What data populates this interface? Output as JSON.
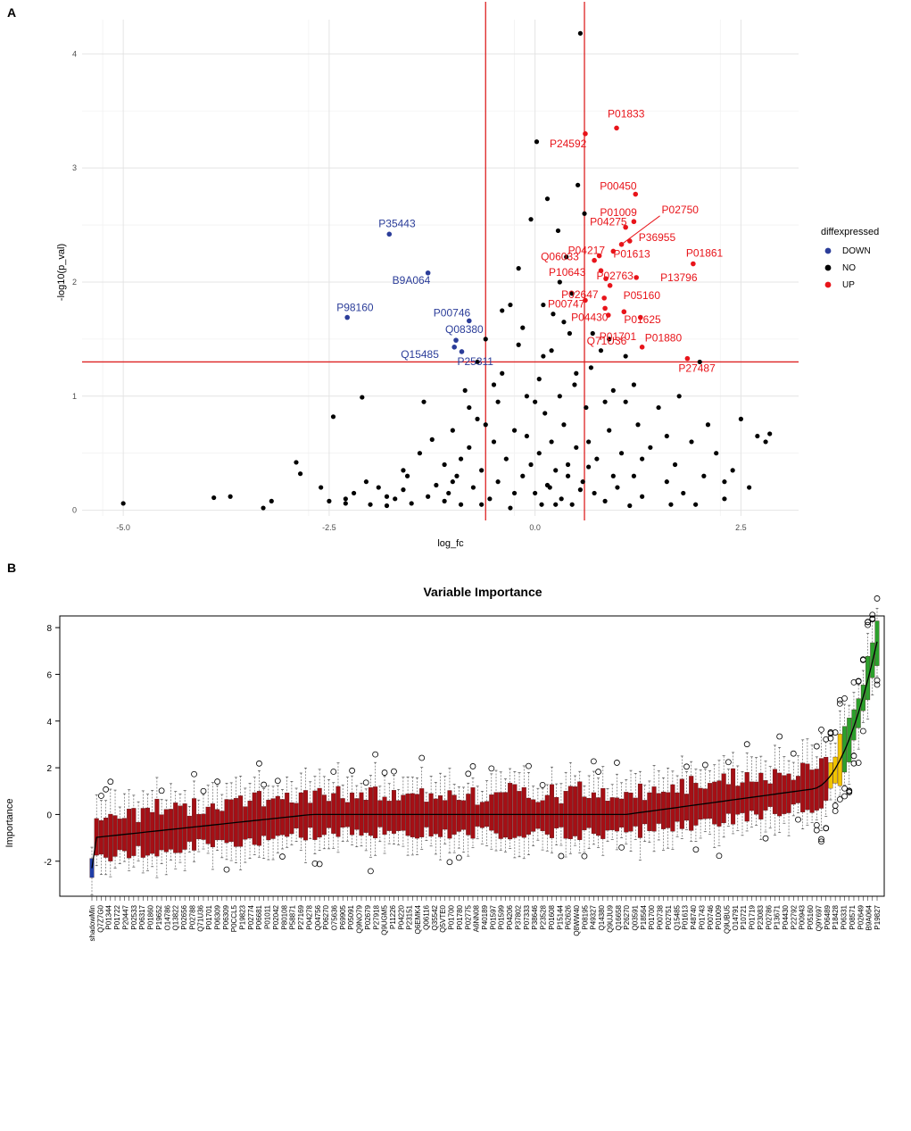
{
  "panels": {
    "a": "A",
    "b": "B"
  },
  "chart_data": [
    {
      "type": "scatter",
      "panel": "A",
      "title": "",
      "xlabel": "log_fc",
      "ylabel": "-log10(p_val)",
      "xlim": [
        -5.5,
        3.2
      ],
      "ylim": [
        -0.05,
        4.3
      ],
      "xticks": [
        -5.0,
        -2.5,
        0.0,
        2.5
      ],
      "xtick_labels": [
        "-5.0",
        "-2.5",
        "0.0",
        "2.5"
      ],
      "yticks": [
        0,
        1,
        2,
        3,
        4
      ],
      "ytick_labels": [
        "0",
        "1",
        "2",
        "3",
        "4"
      ],
      "thresholds": {
        "log_fc": [
          -0.6,
          0.6
        ],
        "neg_log10_p": 1.3
      },
      "legend": {
        "title": "diffexpressed",
        "position": "right",
        "entries": [
          "DOWN",
          "NO",
          "UP"
        ]
      },
      "colors": {
        "DOWN": "#2b3d99",
        "NO": "#000000",
        "UP": "#e8141a",
        "threshold": "#dd2222"
      },
      "labeled_points": [
        {
          "label": "P35443",
          "x": -1.77,
          "y": 2.42,
          "group": "DOWN"
        },
        {
          "label": "B9A064",
          "x": -1.3,
          "y": 2.08,
          "group": "DOWN"
        },
        {
          "label": "P98160",
          "x": -2.28,
          "y": 1.69,
          "group": "DOWN"
        },
        {
          "label": "P00746",
          "x": -0.8,
          "y": 1.66,
          "group": "DOWN"
        },
        {
          "label": "Q08380",
          "x": -0.96,
          "y": 1.49,
          "group": "DOWN"
        },
        {
          "label": "Q15485",
          "x": -0.98,
          "y": 1.43,
          "group": "DOWN"
        },
        {
          "label": "P25311",
          "x": -0.89,
          "y": 1.39,
          "group": "DOWN"
        },
        {
          "label": "P01833",
          "x": 0.99,
          "y": 3.35,
          "group": "UP"
        },
        {
          "label": "P24592",
          "x": 0.61,
          "y": 3.3,
          "group": "UP"
        },
        {
          "label": "P00450",
          "x": 1.22,
          "y": 2.77,
          "group": "UP"
        },
        {
          "label": "P01009",
          "x": 1.2,
          "y": 2.53,
          "group": "UP"
        },
        {
          "label": "P04275",
          "x": 1.1,
          "y": 2.48,
          "group": "UP"
        },
        {
          "label": "P02750",
          "x": 1.05,
          "y": 2.33,
          "group": "UP"
        },
        {
          "label": "P36955",
          "x": 1.15,
          "y": 2.36,
          "group": "UP"
        },
        {
          "label": "P04217",
          "x": 0.78,
          "y": 2.23,
          "group": "UP"
        },
        {
          "label": "P01613",
          "x": 0.95,
          "y": 2.27,
          "group": "UP"
        },
        {
          "label": "P01861",
          "x": 1.92,
          "y": 2.16,
          "group": "UP"
        },
        {
          "label": "Q06033",
          "x": 0.72,
          "y": 2.19,
          "group": "UP"
        },
        {
          "label": "P02763",
          "x": 0.8,
          "y": 2.1,
          "group": "UP"
        },
        {
          "label": "P10643",
          "x": 0.86,
          "y": 2.03,
          "group": "UP"
        },
        {
          "label": "P13796",
          "x": 1.23,
          "y": 2.04,
          "group": "UP"
        },
        {
          "label": "P05160",
          "x": 0.91,
          "y": 1.97,
          "group": "UP"
        },
        {
          "label": "P02647",
          "x": 0.84,
          "y": 1.86,
          "group": "UP"
        },
        {
          "label": "P00747",
          "x": 0.61,
          "y": 1.84,
          "group": "UP"
        },
        {
          "label": "P04430",
          "x": 0.85,
          "y": 1.77,
          "group": "UP"
        },
        {
          "label": "P01625",
          "x": 1.08,
          "y": 1.74,
          "group": "UP"
        },
        {
          "label": "P01701",
          "x": 0.89,
          "y": 1.71,
          "group": "UP"
        },
        {
          "label": "P01880",
          "x": 1.28,
          "y": 1.69,
          "group": "UP"
        },
        {
          "label": "Q71U36",
          "x": 1.3,
          "y": 1.43,
          "group": "UP"
        },
        {
          "label": "P27487",
          "x": 1.85,
          "y": 1.33,
          "group": "UP"
        }
      ],
      "unlabeled_points": [
        [
          -5.0,
          0.06
        ],
        [
          -3.9,
          0.11
        ],
        [
          -3.7,
          0.12
        ],
        [
          -3.3,
          0.02
        ],
        [
          -3.2,
          0.08
        ],
        [
          -2.9,
          0.42
        ],
        [
          -2.85,
          0.32
        ],
        [
          -2.5,
          0.08
        ],
        [
          -2.45,
          0.82
        ],
        [
          -2.3,
          0.1
        ],
        [
          -2.2,
          0.15
        ],
        [
          -2.1,
          0.99
        ],
        [
          -2.05,
          0.25
        ],
        [
          -2.0,
          0.05
        ],
        [
          -1.9,
          0.2
        ],
        [
          -1.8,
          0.04
        ],
        [
          -1.7,
          0.1
        ],
        [
          -1.6,
          0.18
        ],
        [
          -1.55,
          0.3
        ],
        [
          -1.5,
          0.06
        ],
        [
          -1.4,
          0.5
        ],
        [
          -1.35,
          0.95
        ],
        [
          -1.3,
          0.12
        ],
        [
          -1.25,
          0.62
        ],
        [
          -1.2,
          0.22
        ],
        [
          -1.1,
          0.4
        ],
        [
          -1.05,
          0.15
        ],
        [
          -1.0,
          0.7
        ],
        [
          -0.95,
          0.3
        ],
        [
          -0.9,
          0.05
        ],
        [
          -0.85,
          1.05
        ],
        [
          -0.8,
          0.55
        ],
        [
          -0.75,
          0.2
        ],
        [
          -0.7,
          0.8
        ],
        [
          -0.65,
          0.35
        ],
        [
          -0.6,
          1.5
        ],
        [
          -0.55,
          0.1
        ],
        [
          -0.5,
          0.6
        ],
        [
          -0.45,
          0.25
        ],
        [
          -0.4,
          1.2
        ],
        [
          -0.35,
          0.45
        ],
        [
          -0.3,
          0.02
        ],
        [
          -0.25,
          0.7
        ],
        [
          -0.2,
          2.12
        ],
        [
          -0.15,
          0.3
        ],
        [
          -0.1,
          1.0
        ],
        [
          -0.05,
          2.55
        ],
        [
          0.0,
          0.15
        ],
        [
          0.02,
          3.23
        ],
        [
          0.05,
          0.5
        ],
        [
          0.08,
          0.05
        ],
        [
          0.1,
          1.35
        ],
        [
          0.12,
          0.85
        ],
        [
          0.15,
          2.73
        ],
        [
          0.18,
          0.2
        ],
        [
          0.2,
          0.6
        ],
        [
          0.22,
          1.72
        ],
        [
          0.25,
          0.35
        ],
        [
          0.28,
          2.45
        ],
        [
          0.3,
          1.0
        ],
        [
          0.32,
          0.1
        ],
        [
          0.35,
          0.75
        ],
        [
          0.38,
          2.22
        ],
        [
          0.4,
          0.4
        ],
        [
          0.42,
          1.55
        ],
        [
          0.45,
          0.05
        ],
        [
          0.48,
          1.1
        ],
        [
          0.5,
          0.55
        ],
        [
          0.52,
          2.85
        ],
        [
          0.55,
          4.18
        ],
        [
          0.58,
          0.25
        ],
        [
          0.62,
          0.9
        ],
        [
          0.65,
          0.6
        ],
        [
          0.68,
          1.25
        ],
        [
          0.72,
          0.15
        ],
        [
          0.75,
          0.45
        ],
        [
          0.8,
          1.4
        ],
        [
          0.85,
          0.08
        ],
        [
          0.9,
          0.7
        ],
        [
          0.95,
          1.05
        ],
        [
          1.0,
          0.2
        ],
        [
          1.05,
          0.5
        ],
        [
          1.1,
          0.95
        ],
        [
          1.15,
          0.04
        ],
        [
          1.2,
          0.3
        ],
        [
          1.25,
          0.75
        ],
        [
          1.3,
          0.12
        ],
        [
          1.4,
          0.55
        ],
        [
          1.5,
          0.9
        ],
        [
          1.6,
          0.25
        ],
        [
          1.65,
          0.05
        ],
        [
          1.7,
          0.4
        ],
        [
          1.75,
          1.0
        ],
        [
          1.8,
          0.15
        ],
        [
          1.9,
          0.6
        ],
        [
          1.95,
          0.05
        ],
        [
          2.0,
          1.3
        ],
        [
          2.05,
          0.3
        ],
        [
          2.1,
          0.75
        ],
        [
          2.2,
          0.5
        ],
        [
          2.3,
          0.1
        ],
        [
          2.4,
          0.35
        ],
        [
          2.5,
          0.8
        ],
        [
          2.6,
          0.2
        ],
        [
          2.7,
          0.65
        ],
        [
          2.8,
          0.6
        ],
        [
          2.85,
          0.67
        ],
        [
          -0.3,
          1.8
        ],
        [
          0.3,
          2.0
        ],
        [
          -0.5,
          1.1
        ],
        [
          0.1,
          1.8
        ],
        [
          0.6,
          2.6
        ],
        [
          -0.7,
          1.3
        ],
        [
          0.45,
          1.9
        ],
        [
          -0.15,
          1.6
        ],
        [
          0.7,
          1.55
        ],
        [
          0.2,
          1.4
        ],
        [
          -0.4,
          1.75
        ],
        [
          0.35,
          1.65
        ],
        [
          -0.2,
          1.45
        ],
        [
          0.9,
          1.5
        ],
        [
          1.1,
          1.35
        ],
        [
          -1.6,
          0.35
        ],
        [
          -2.6,
          0.2
        ],
        [
          1.3,
          0.45
        ],
        [
          2.3,
          0.25
        ],
        [
          -0.9,
          0.45
        ],
        [
          -0.6,
          0.75
        ],
        [
          0.0,
          0.95
        ],
        [
          0.4,
          0.3
        ],
        [
          -1.1,
          0.08
        ],
        [
          -0.25,
          0.15
        ],
        [
          0.15,
          0.22
        ],
        [
          0.55,
          0.18
        ],
        [
          0.95,
          0.3
        ],
        [
          -1.8,
          0.12
        ],
        [
          -2.3,
          0.06
        ],
        [
          -0.05,
          0.4
        ],
        [
          0.25,
          0.05
        ],
        [
          0.65,
          0.38
        ],
        [
          -0.8,
          0.9
        ],
        [
          -0.45,
          0.95
        ],
        [
          0.05,
          1.15
        ],
        [
          0.5,
          1.2
        ],
        [
          0.85,
          0.95
        ],
        [
          1.2,
          1.1
        ],
        [
          1.6,
          0.65
        ],
        [
          -1.0,
          0.25
        ],
        [
          -0.65,
          0.05
        ],
        [
          -0.1,
          0.65
        ]
      ]
    },
    {
      "type": "box",
      "panel": "B",
      "title": "Variable Importance",
      "ylabel": "Importance",
      "xlabel": "",
      "ylim": [
        -3.5,
        8.5
      ],
      "yticks": [
        -2,
        0,
        2,
        4,
        6,
        8
      ],
      "ytick_labels": [
        "-2",
        "0",
        "2",
        "4",
        "6",
        "8"
      ],
      "n_boxes": 170,
      "colors": {
        "rejected": "#a50f15",
        "tentative": "#f0c400",
        "confirmed": "#2ca02c",
        "shadow": "#1f3ea8"
      },
      "categories": [
        "shadowMin",
        "Q7Z7G0",
        "P01344",
        "P01722",
        "P20447",
        "P02533",
        "P06317",
        "P01860",
        "P19652",
        "O14786",
        "Q13822",
        "P02656",
        "P02788",
        "Q71U36",
        "P01701",
        "P06309",
        "P06309",
        "P0CCL5",
        "P19823",
        "P02774",
        "P06681",
        "P01011",
        "P02042",
        "P80108",
        "P58871",
        "P27169",
        "P04278",
        "Q04756",
        "P06270",
        "O75636",
        "P69905",
        "P05091",
        "Q9NO79",
        "P02679",
        "P27918",
        "Q9UGM5",
        "P11226",
        "P04220",
        "P23151",
        "Q6EMK4",
        "Q06116",
        "Q35542",
        "Q5VTE0",
        "P01700",
        "P01780",
        "P02775",
        "A6NN08",
        "P40189",
        "P01597",
        "P01599",
        "P04206",
        "P37802",
        "P07333",
        "P38646",
        "P23528",
        "P01608",
        "P15144",
        "P62626",
        "Q8WW40",
        "P08195",
        "P49327",
        "Q14380",
        "Q9UJU9",
        "Q16658",
        "P26270",
        "Q03591",
        "P18564",
        "P01700",
        "P00738",
        "P02751",
        "Q15485",
        "P01613",
        "P48740",
        "P01743",
        "P00746",
        "P01009",
        "Q9UBU5",
        "O14791",
        "P10721",
        "P01719",
        "P23083",
        "P02786",
        "P13671",
        "P04430",
        "P22792",
        "P00943",
        "P05160",
        "Q9Y697",
        "P06489",
        "P18428",
        "P06331",
        "P08571",
        "P02649",
        "B9A064",
        "P19827"
      ]
    }
  ]
}
